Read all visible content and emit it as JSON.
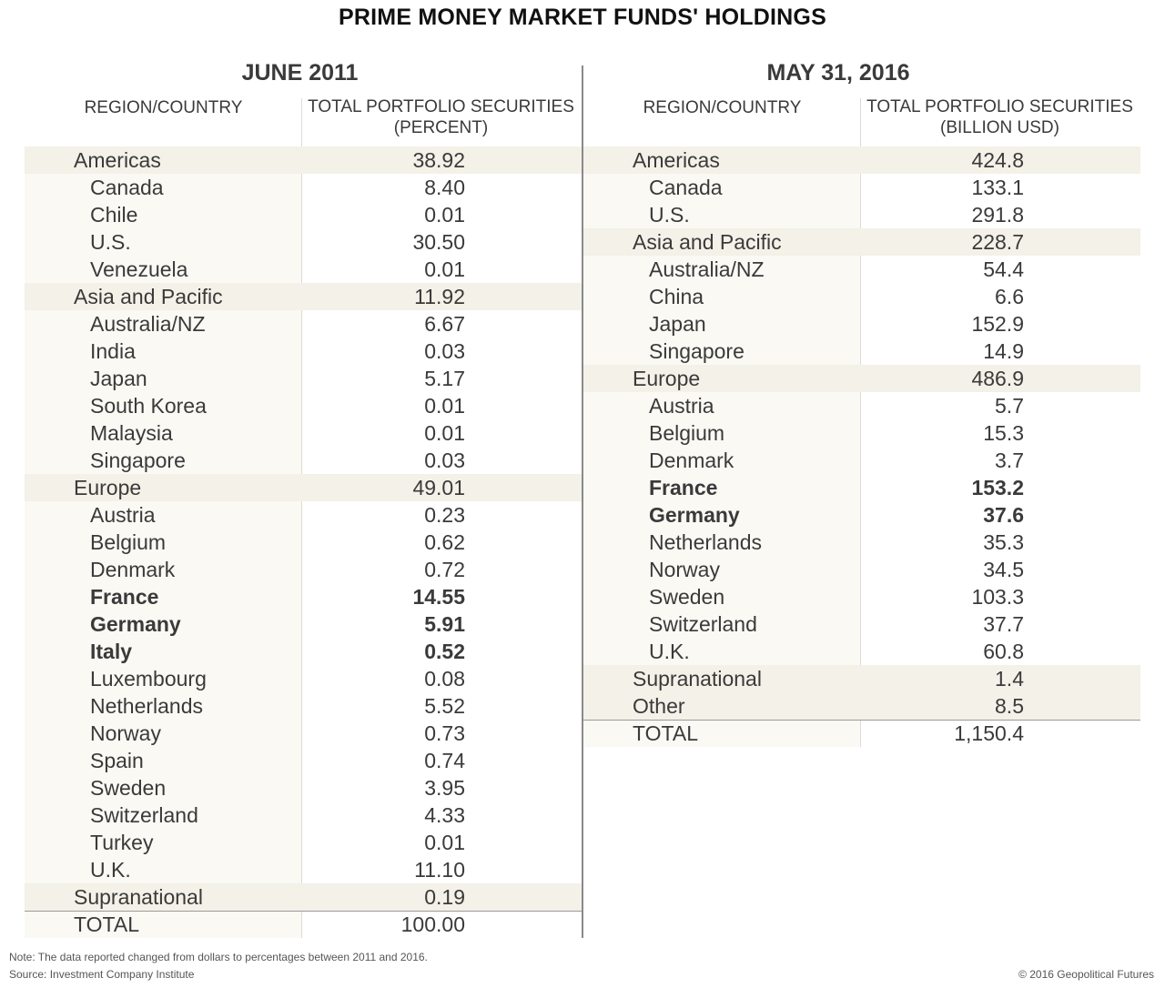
{
  "title": "PRIME MONEY MARKET FUNDS' HOLDINGS",
  "chart_data": [
    {
      "type": "table",
      "title": "JUNE 2011",
      "columns": [
        "REGION/COUNTRY",
        "TOTAL PORTFOLIO SECURITIES",
        "(PERCENT)"
      ],
      "rows": [
        {
          "name": "Americas",
          "value": "38.92",
          "level": 0,
          "shade": true
        },
        {
          "name": "Canada",
          "value": "8.40",
          "level": 1
        },
        {
          "name": "Chile",
          "value": "0.01",
          "level": 1
        },
        {
          "name": "U.S.",
          "value": "30.50",
          "level": 1
        },
        {
          "name": "Venezuela",
          "value": "0.01",
          "level": 1
        },
        {
          "name": "Asia and Pacific",
          "value": "11.92",
          "level": 0,
          "shade": true
        },
        {
          "name": "Australia/NZ",
          "value": "6.67",
          "level": 1
        },
        {
          "name": "India",
          "value": "0.03",
          "level": 1
        },
        {
          "name": "Japan",
          "value": "5.17",
          "level": 1
        },
        {
          "name": "South Korea",
          "value": "0.01",
          "level": 1
        },
        {
          "name": "Malaysia",
          "value": "0.01",
          "level": 1
        },
        {
          "name": "Singapore",
          "value": "0.03",
          "level": 1
        },
        {
          "name": "Europe",
          "value": "49.01",
          "level": 0,
          "shade": true
        },
        {
          "name": "Austria",
          "value": "0.23",
          "level": 1
        },
        {
          "name": "Belgium",
          "value": "0.62",
          "level": 1
        },
        {
          "name": "Denmark",
          "value": "0.72",
          "level": 1
        },
        {
          "name": "France",
          "value": "14.55",
          "level": 1,
          "bold": true
        },
        {
          "name": "Germany",
          "value": "5.91",
          "level": 1,
          "bold": true
        },
        {
          "name": "Italy",
          "value": "0.52",
          "level": 1,
          "bold": true
        },
        {
          "name": "Luxembourg",
          "value": "0.08",
          "level": 1
        },
        {
          "name": "Netherlands",
          "value": "5.52",
          "level": 1
        },
        {
          "name": "Norway",
          "value": "0.73",
          "level": 1
        },
        {
          "name": "Spain",
          "value": "0.74",
          "level": 1
        },
        {
          "name": "Sweden",
          "value": "3.95",
          "level": 1
        },
        {
          "name": "Switzerland",
          "value": "4.33",
          "level": 1
        },
        {
          "name": "Turkey",
          "value": "0.01",
          "level": 1
        },
        {
          "name": "U.K.",
          "value": "11.10",
          "level": 1
        },
        {
          "name": "Supranational",
          "value": "0.19",
          "level": 0,
          "shade": true
        },
        {
          "name": "TOTAL",
          "value": "100.00",
          "level": 0,
          "total": true
        }
      ]
    },
    {
      "type": "table",
      "title": "MAY 31, 2016",
      "columns": [
        "REGION/COUNTRY",
        "TOTAL PORTFOLIO SECURITIES",
        "(BILLION USD)"
      ],
      "rows": [
        {
          "name": "Americas",
          "value": "424.8",
          "level": 0,
          "shade": true
        },
        {
          "name": "Canada",
          "value": "133.1",
          "level": 1
        },
        {
          "name": "U.S.",
          "value": "291.8",
          "level": 1
        },
        {
          "name": "Asia and Pacific",
          "value": "228.7",
          "level": 0,
          "shade": true
        },
        {
          "name": "Australia/NZ",
          "value": "54.4",
          "level": 1
        },
        {
          "name": "China",
          "value": "6.6",
          "level": 1
        },
        {
          "name": "Japan",
          "value": "152.9",
          "level": 1
        },
        {
          "name": "Singapore",
          "value": "14.9",
          "level": 1
        },
        {
          "name": "Europe",
          "value": "486.9",
          "level": 0,
          "shade": true
        },
        {
          "name": "Austria",
          "value": "5.7",
          "level": 1
        },
        {
          "name": "Belgium",
          "value": "15.3",
          "level": 1
        },
        {
          "name": "Denmark",
          "value": "3.7",
          "level": 1
        },
        {
          "name": "France",
          "value": "153.2",
          "level": 1,
          "bold": true
        },
        {
          "name": "Germany",
          "value": "37.6",
          "level": 1,
          "bold": true
        },
        {
          "name": "Netherlands",
          "value": "35.3",
          "level": 1
        },
        {
          "name": "Norway",
          "value": "34.5",
          "level": 1
        },
        {
          "name": "Sweden",
          "value": "103.3",
          "level": 1
        },
        {
          "name": "Switzerland",
          "value": "37.7",
          "level": 1
        },
        {
          "name": "U.K.",
          "value": "60.8",
          "level": 1
        },
        {
          "name": "Supranational",
          "value": "1.4",
          "level": 0,
          "shade": true
        },
        {
          "name": "Other",
          "value": "8.5",
          "level": 0,
          "shade": true
        },
        {
          "name": "TOTAL",
          "value": "1,150.4",
          "level": 0,
          "total": true
        }
      ]
    }
  ],
  "footer": {
    "note": "Note: The data reported changed from dollars to percentages between 2011 and 2016.",
    "source": "Source: Investment Company Institute",
    "copyright": "© 2016 Geopolitical Futures"
  },
  "colors": {
    "shade_row": "#f3f1e8",
    "column_background": "#faf9f4",
    "divider": "#8a8a8a",
    "text": "#3a3a3a"
  }
}
